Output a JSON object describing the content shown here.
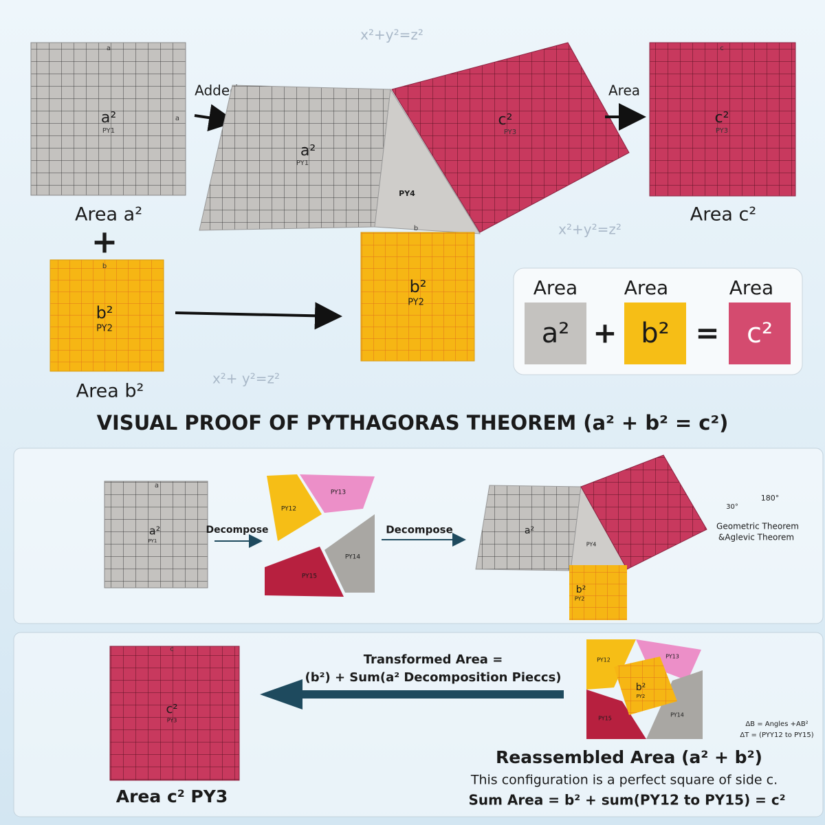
{
  "formulas": [
    "x²+y²=z²",
    "x²+y²=z²",
    "x²+ y²=z²"
  ],
  "top": {
    "square_a": {
      "side": "a",
      "side2": "a",
      "label": "a²",
      "code": "PY1",
      "caption": "Area a²"
    },
    "plus": "+",
    "added": "Added",
    "square_b": {
      "side": "b",
      "label": "b²",
      "code": "PY2",
      "caption": "Area b²"
    },
    "assembly": {
      "a_label": "a²",
      "a_code": "PY1",
      "triangle": "PY4",
      "base": "b",
      "c_label": "c²",
      "c_code": "PY3",
      "b_label": "b²",
      "b_code": "PY2"
    },
    "area_arrow": "Area",
    "square_c": {
      "side": "c",
      "label": "c²",
      "code": "PY3",
      "caption": "Area c²"
    },
    "equation": {
      "heads": [
        "Area",
        "Area",
        "Area"
      ],
      "a": "a²",
      "plus": "+",
      "b": "b²",
      "equals": "=",
      "c": "c²"
    }
  },
  "title": "VISUAL PROOF OF PYTHAGORAS THEOREM (a² + b² = c²)",
  "decompose_panel": {
    "square": {
      "side": "a",
      "label": "a²",
      "code": "PY1"
    },
    "step1": "Decompose",
    "pieces": [
      "PY12",
      "PY13",
      "PY14",
      "PY15"
    ],
    "step2": "Decompose",
    "assembly": {
      "a_label": "a²",
      "triangle": "PY4",
      "b_label": "b²",
      "b_code": "PY2"
    },
    "decor": {
      "angle1": "180°",
      "angle2": "30°",
      "line1": "Geometric Theorem",
      "line2": "&Aglevic Theorem"
    }
  },
  "reassemble_panel": {
    "square": {
      "side": "c",
      "label": "c²",
      "code": "PY3",
      "caption": "Area c² PY3"
    },
    "arrow_text": [
      "Transformed Area =",
      "(b²) + Sum(a² Decomposition Pieccs)"
    ],
    "pieces": [
      "PY12",
      "PY13",
      "PY14",
      "PY15"
    ],
    "center": {
      "label": "b²",
      "code": "PY2"
    },
    "heading": "Reassembled Area (a² + b²)",
    "line1": "This configuration is a perfect square of side c.",
    "line2": "Sum Area = b² + sum(PY12 to PY15) = c²",
    "decor": [
      "ΔB = Angles +AB²",
      "ΔT = (PYY12 to PY15)"
    ]
  }
}
